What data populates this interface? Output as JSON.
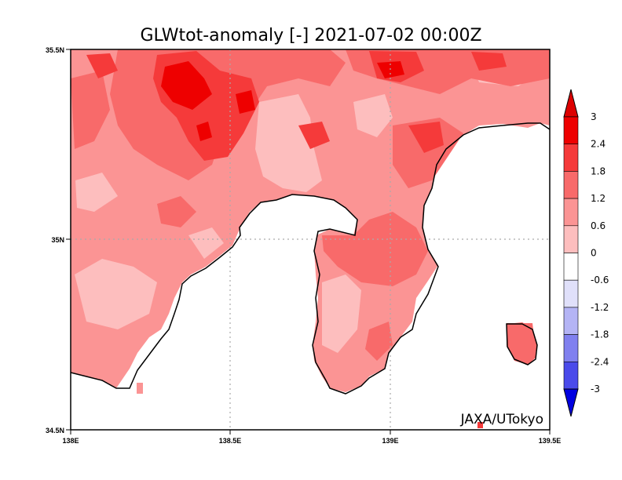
{
  "title": "GLWtot-anomaly [-] 2021-07-02 00:00Z",
  "credit": "JAXA/UTokyo",
  "axes": {
    "x_ticks": [
      "138E",
      "138.5E",
      "139E",
      "139.5E"
    ],
    "y_ticks": [
      "35.5N",
      "35N",
      "34.5N"
    ],
    "x_range": [
      138.0,
      139.5
    ],
    "y_range": [
      34.5,
      35.5
    ]
  },
  "colorbar": {
    "labels": [
      "3",
      "2.4",
      "1.8",
      "1.2",
      "0.6",
      "0",
      "-0.6",
      "-1.2",
      "-1.8",
      "-2.4",
      "-3"
    ],
    "colors": [
      "#ee0000",
      "#f53a3a",
      "#f86a6a",
      "#fb9494",
      "#fdbebe",
      "#ffffff",
      "#e0e0fa",
      "#b4b4f5",
      "#8080ef",
      "#4a4aea",
      "#1111e6"
    ],
    "over_color": "#dd0000",
    "under_color": "#0000e0"
  },
  "land_colors": {
    "level_0_6": "#fdbebe",
    "level_1_2": "#fb9494",
    "level_1_8": "#f86a6a",
    "level_2_4": "#f53a3a",
    "level_3": "#ee0000"
  }
}
